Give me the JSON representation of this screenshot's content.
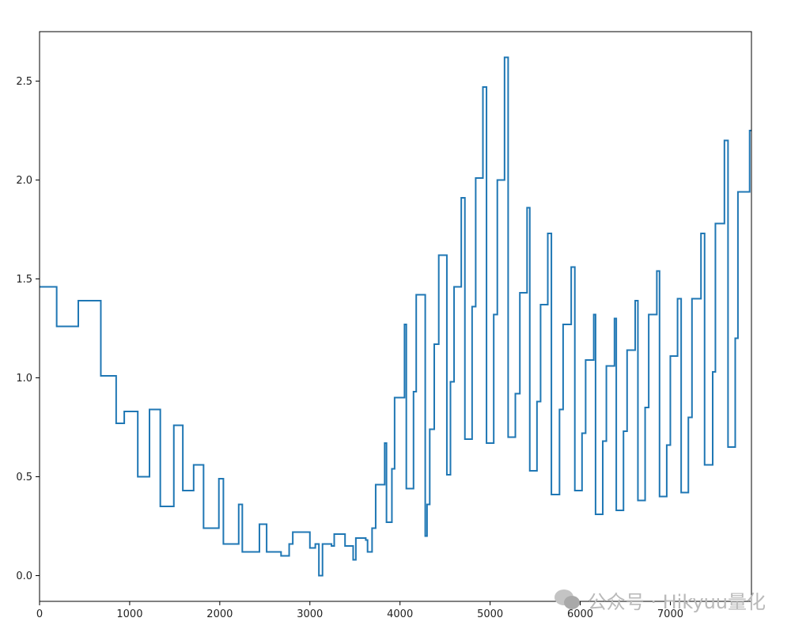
{
  "chart_data": {
    "type": "line",
    "title": "",
    "xlabel": "",
    "ylabel": "",
    "xlim": [
      0,
      7900
    ],
    "ylim": [
      -0.13,
      2.75
    ],
    "xticks": [
      0,
      1000,
      2000,
      3000,
      4000,
      5000,
      6000,
      7000
    ],
    "yticks": [
      0.0,
      0.5,
      1.0,
      1.5,
      2.0,
      2.5
    ],
    "xtick_labels": [
      "0",
      "1000",
      "2000",
      "3000",
      "4000",
      "5000",
      "6000",
      "7000"
    ],
    "ytick_labels": [
      "0.0",
      "0.5",
      "1.0",
      "1.5",
      "2.0",
      "2.5"
    ],
    "line_color": "#1f77b4",
    "step": true,
    "series": [
      {
        "x": [
          0,
          190,
          430,
          680,
          850,
          940,
          1090,
          1220,
          1340,
          1490,
          1590,
          1710,
          1820,
          1990,
          2040,
          2210,
          2250,
          2440,
          2520,
          2680,
          2770,
          2810,
          3000,
          3060,
          3100,
          3140,
          3240,
          3270,
          3390,
          3480,
          3510,
          3620,
          3640,
          3690,
          3730,
          3830,
          3850,
          3910,
          3940,
          4050,
          4070,
          4150,
          4180,
          4280,
          4300,
          4330,
          4380,
          4430,
          4520,
          4560,
          4600,
          4680,
          4720,
          4800,
          4840,
          4920,
          4960,
          5040,
          5080,
          5160,
          5200,
          5280,
          5330,
          5410,
          5440,
          5520,
          5560,
          5640,
          5680,
          5770,
          5810,
          5900,
          5940,
          6020,
          6060,
          6150,
          6170,
          6250,
          6290,
          6380,
          6400,
          6480,
          6520,
          6610,
          6640,
          6720,
          6760,
          6850,
          6880,
          6960,
          7000,
          7080,
          7120,
          7200,
          7240,
          7340,
          7380,
          7470,
          7500,
          7600,
          7640,
          7720,
          7750,
          7880,
          7900
        ],
        "y": [
          1.46,
          1.26,
          1.39,
          1.01,
          0.77,
          0.83,
          0.5,
          0.84,
          0.35,
          0.76,
          0.43,
          0.56,
          0.24,
          0.49,
          0.16,
          0.36,
          0.12,
          0.26,
          0.12,
          0.1,
          0.16,
          0.22,
          0.14,
          0.16,
          0.0,
          0.16,
          0.15,
          0.21,
          0.15,
          0.08,
          0.19,
          0.18,
          0.12,
          0.24,
          0.46,
          0.67,
          0.27,
          0.54,
          0.9,
          1.27,
          0.44,
          0.93,
          1.42,
          0.2,
          0.36,
          0.74,
          1.17,
          1.62,
          0.51,
          0.98,
          1.46,
          1.91,
          0.69,
          1.36,
          2.01,
          2.47,
          0.67,
          1.32,
          2.0,
          2.62,
          0.7,
          0.92,
          1.43,
          1.86,
          0.53,
          0.88,
          1.37,
          1.73,
          0.41,
          0.84,
          1.27,
          1.56,
          0.43,
          0.72,
          1.09,
          1.32,
          0.31,
          0.68,
          1.06,
          1.3,
          0.33,
          0.73,
          1.14,
          1.39,
          0.38,
          0.85,
          1.32,
          1.54,
          0.4,
          0.66,
          1.11,
          1.4,
          0.42,
          0.8,
          1.4,
          1.73,
          0.56,
          1.03,
          1.78,
          2.2,
          0.65,
          1.2,
          1.94,
          2.25,
          2.25
        ]
      }
    ]
  },
  "watermark": {
    "icon": "wechat-icon",
    "text": "公众号 · Hikyuu量化"
  }
}
